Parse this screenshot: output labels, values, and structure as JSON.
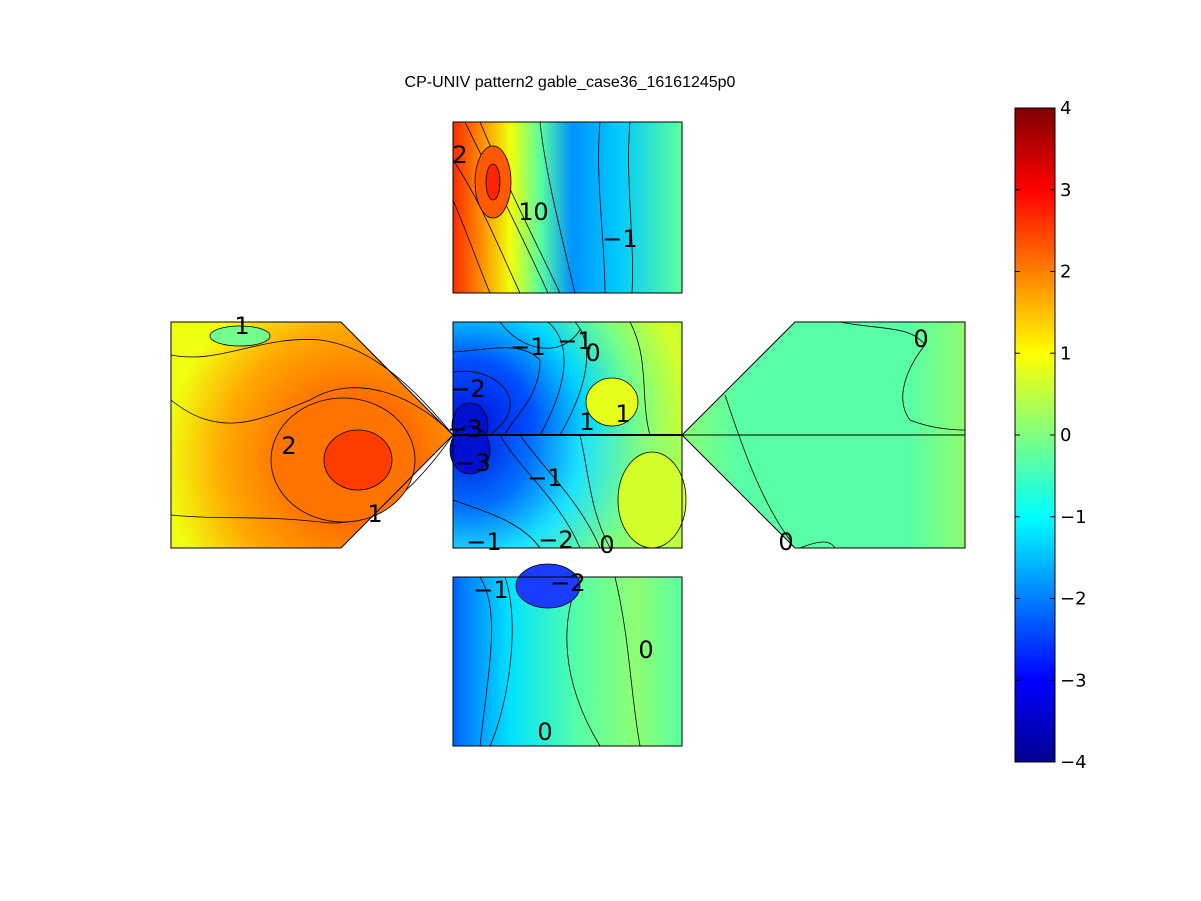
{
  "chart_data": {
    "type": "heatmap",
    "title": "CP-UNIV pattern2 gable_case36_16161245p0",
    "colormap": "jet",
    "clim": [
      -4,
      4
    ],
    "colorbar_ticks": [
      "4",
      "3",
      "2",
      "1",
      "0",
      "−1",
      "−2",
      "−3",
      "−4"
    ],
    "panels": [
      {
        "name": "top",
        "value_range": [
          -1,
          3
        ],
        "contour_labels": [
          "2",
          "1",
          "0",
          "−1"
        ]
      },
      {
        "name": "left",
        "value_range": [
          0.5,
          2.8
        ],
        "contour_labels": [
          "1",
          "2",
          "1"
        ]
      },
      {
        "name": "center-upper",
        "value_range": [
          -3,
          1
        ],
        "contour_labels": [
          "−1",
          "−1",
          "0",
          "−2",
          "−3",
          "1",
          "1"
        ]
      },
      {
        "name": "center-lower",
        "value_range": [
          -3,
          1
        ],
        "contour_labels": [
          "−3",
          "−1",
          "−1",
          "−2",
          "0"
        ]
      },
      {
        "name": "right",
        "value_range": [
          -0.5,
          0.5
        ],
        "contour_labels": [
          "0",
          "0"
        ]
      },
      {
        "name": "bottom",
        "value_range": [
          -2,
          0.5
        ],
        "contour_labels": [
          "−1",
          "−2",
          "0",
          "0"
        ]
      }
    ]
  }
}
